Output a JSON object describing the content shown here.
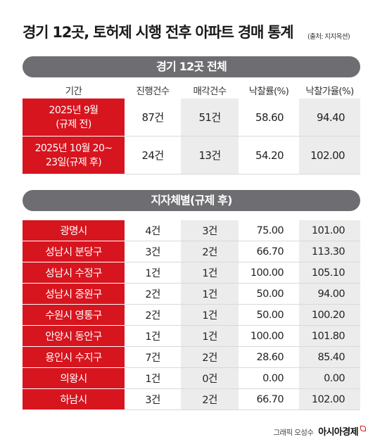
{
  "title": "경기 12곳, 토허제 시행 전후 아파트 경매 통계",
  "source": "(출처: 지지옥션)",
  "section1": "경기 12곳 전체",
  "section2": "지자체별(규제 후)",
  "columns": [
    "기간",
    "진행건수",
    "매각건수",
    "낙찰률(%)",
    "낙찰가율(%)"
  ],
  "summary": [
    {
      "label1": "2025년 9월",
      "label2": "(규제 전)",
      "count": "87건",
      "sold": "51건",
      "rate": "58.60",
      "price_rate": "94.40"
    },
    {
      "label1": "2025년 10월 20~",
      "label2": "23일(규제 후)",
      "count": "24건",
      "sold": "13건",
      "rate": "54.20",
      "price_rate": "102.00"
    }
  ],
  "regions": [
    {
      "name": "광명시",
      "count": "4건",
      "sold": "3건",
      "rate": "75.00",
      "price_rate": "101.00"
    },
    {
      "name": "성남시 분당구",
      "count": "3건",
      "sold": "2건",
      "rate": "66.70",
      "price_rate": "113.30"
    },
    {
      "name": "성남시 수정구",
      "count": "1건",
      "sold": "1건",
      "rate": "100.00",
      "price_rate": "105.10"
    },
    {
      "name": "성남시 중원구",
      "count": "2건",
      "sold": "1건",
      "rate": "50.00",
      "price_rate": "94.00"
    },
    {
      "name": "수원시 영통구",
      "count": "2건",
      "sold": "1건",
      "rate": "50.00",
      "price_rate": "100.20"
    },
    {
      "name": "안양시 동안구",
      "count": "1건",
      "sold": "1건",
      "rate": "100.00",
      "price_rate": "101.80"
    },
    {
      "name": "용인시 수지구",
      "count": "7건",
      "sold": "2건",
      "rate": "28.60",
      "price_rate": "85.40"
    },
    {
      "name": "의왕시",
      "count": "1건",
      "sold": "0건",
      "rate": "0.00",
      "price_rate": "0.00"
    },
    {
      "name": "하남시",
      "count": "3건",
      "sold": "2건",
      "rate": "66.70",
      "price_rate": "102.00"
    }
  ],
  "credit": {
    "author": "그래픽 오성수",
    "brand": "아시아경제"
  },
  "colors": {
    "accent": "#d7151f",
    "pill": "#6e6e72",
    "stripe": "#ececec"
  }
}
